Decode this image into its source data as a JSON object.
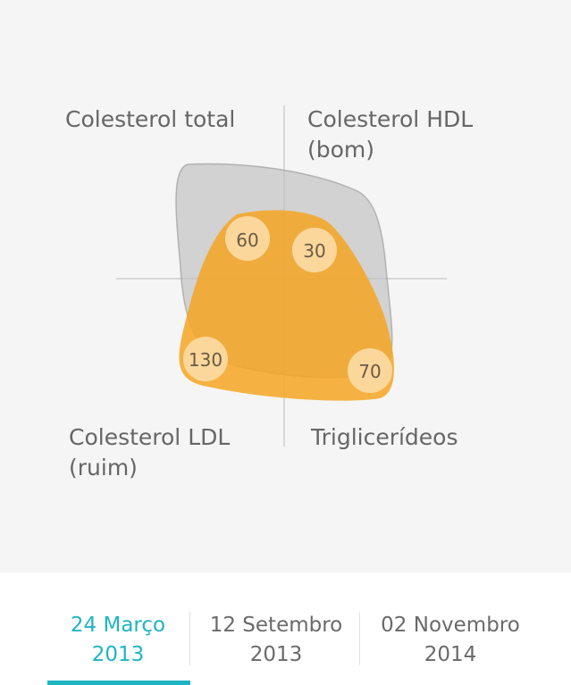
{
  "chart": {
    "quadrants": {
      "top_left": "Colesterol total",
      "top_right_line1": "Colesterol HDL",
      "top_right_line2": "(bom)",
      "bottom_left_line1": "Colesterol LDL",
      "bottom_left_line2": "(ruim)",
      "bottom_right": "Triglicerídeos"
    },
    "values": {
      "colesterol_total": "60",
      "colesterol_hdl": "30",
      "colesterol_ldl": "130",
      "triglicerideos": "70"
    },
    "colors": {
      "background": "#f5f5f5",
      "reference_shape": "#cccccc",
      "current_shape": "#f5a623",
      "badge": "#fbd9a0",
      "axis": "#cfcfcf"
    }
  },
  "tabs": [
    {
      "line1": "24 Março",
      "line2": "2013",
      "active": true
    },
    {
      "line1": "12 Setembro",
      "line2": "2013",
      "active": false
    },
    {
      "line1": "02 Novembro",
      "line2": "2014",
      "active": false
    }
  ],
  "accent_color": "#1fb4c4"
}
